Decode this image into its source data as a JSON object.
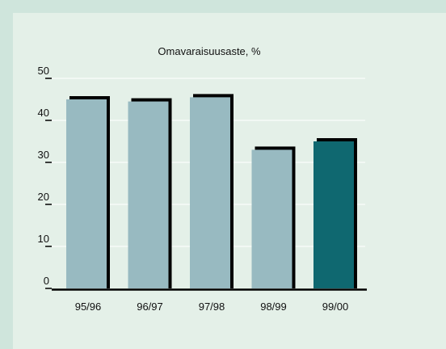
{
  "chart_data": {
    "type": "bar",
    "title": "Omavaraisuusaste, %",
    "xlabel": "",
    "ylabel": "",
    "categories": [
      "95/96",
      "96/97",
      "97/98",
      "98/99",
      "99/00"
    ],
    "values": [
      45,
      44.5,
      45.5,
      33,
      35
    ],
    "ylim": [
      0,
      50
    ],
    "yticks": [
      0,
      10,
      20,
      30,
      40,
      50
    ],
    "grid": true,
    "colors": {
      "bar": "#98bac1",
      "highlight": "#0f6870",
      "shadow": "#000000",
      "grid": "#ffffff"
    },
    "highlight_index": 4
  }
}
